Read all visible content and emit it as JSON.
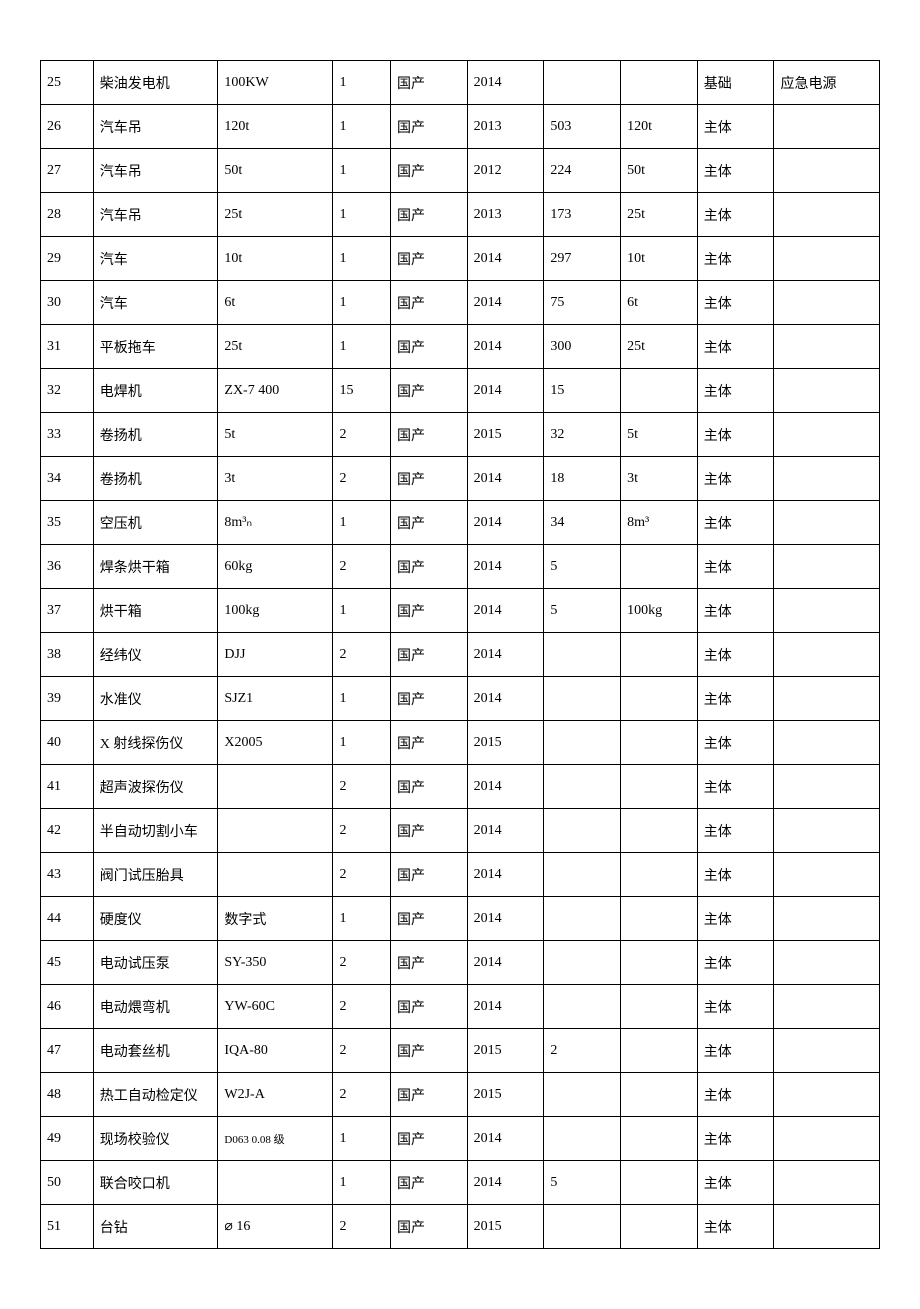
{
  "table": {
    "column_widths_pct": [
      5.5,
      13,
      12,
      6,
      8,
      8,
      8,
      8,
      8,
      11
    ],
    "border_color": "#000000",
    "background_color": "#ffffff",
    "text_color": "#000000",
    "font_size_pt": 10,
    "small_font_size_pt": 8,
    "rows": [
      {
        "cells": [
          "25",
          "柴油发电机",
          "100KW",
          "1",
          "国产",
          "2014",
          "",
          "",
          "基础",
          "应急电源"
        ],
        "small_idx": []
      },
      {
        "cells": [
          "26",
          "汽车吊",
          "120t",
          "1",
          "国产",
          "2013",
          "503",
          "120t",
          "主体",
          ""
        ],
        "small_idx": []
      },
      {
        "cells": [
          "27",
          "汽车吊",
          "50t",
          "1",
          "国产",
          "2012",
          "224",
          "50t",
          "主体",
          ""
        ],
        "small_idx": []
      },
      {
        "cells": [
          "28",
          "汽车吊",
          "25t",
          "1",
          "国产",
          "2013",
          "173",
          "25t",
          "主体",
          ""
        ],
        "small_idx": []
      },
      {
        "cells": [
          "29",
          "汽车",
          "10t",
          "1",
          "国产",
          "2014",
          "297",
          "10t",
          "主体",
          ""
        ],
        "small_idx": []
      },
      {
        "cells": [
          "30",
          "汽车",
          "6t",
          "1",
          "国产",
          "2014",
          "75",
          "6t",
          "主体",
          ""
        ],
        "small_idx": []
      },
      {
        "cells": [
          "31",
          "平板拖车",
          "25t",
          "1",
          "国产",
          "2014",
          "300",
          "25t",
          "主体",
          ""
        ],
        "small_idx": []
      },
      {
        "cells": [
          "32",
          "电焊机",
          "ZX-7 400",
          "15",
          "国产",
          "2014",
          "15",
          "",
          "主体",
          ""
        ],
        "small_idx": []
      },
      {
        "cells": [
          "33",
          "卷扬机",
          "5t",
          "2",
          "国产",
          "2015",
          "32",
          "5t",
          "主体",
          ""
        ],
        "small_idx": []
      },
      {
        "cells": [
          "34",
          "卷扬机",
          "3t",
          "2",
          "国产",
          "2014",
          "18",
          "3t",
          "主体",
          ""
        ],
        "small_idx": []
      },
      {
        "cells": [
          "35",
          "空压机",
          "8m³ₙ",
          "1",
          "国产",
          "2014",
          "34",
          "8m³",
          "主体",
          ""
        ],
        "small_idx": []
      },
      {
        "cells": [
          "36",
          "焊条烘干箱",
          "60kg",
          "2",
          "国产",
          "2014",
          "5",
          "",
          "主体",
          ""
        ],
        "small_idx": []
      },
      {
        "cells": [
          "37",
          "烘干箱",
          "100kg",
          "1",
          "国产",
          "2014",
          "5",
          "100kg",
          "主体",
          ""
        ],
        "small_idx": []
      },
      {
        "cells": [
          "38",
          "经纬仪",
          "DJJ",
          "2",
          "国产",
          "2014",
          "",
          "",
          "主体",
          ""
        ],
        "small_idx": []
      },
      {
        "cells": [
          "39",
          "水准仪",
          "SJZ1",
          "1",
          "国产",
          "2014",
          "",
          "",
          "主体",
          ""
        ],
        "small_idx": []
      },
      {
        "cells": [
          "40",
          "X 射线探伤仪",
          "X2005",
          "1",
          "国产",
          "2015",
          "",
          "",
          "主体",
          ""
        ],
        "small_idx": []
      },
      {
        "cells": [
          "41",
          "超声波探伤仪",
          "",
          "2",
          "国产",
          "2014",
          "",
          "",
          "主体",
          ""
        ],
        "small_idx": []
      },
      {
        "cells": [
          "42",
          "半自动切割小车",
          "",
          "2",
          "国产",
          "2014",
          "",
          "",
          "主体",
          ""
        ],
        "small_idx": []
      },
      {
        "cells": [
          "43",
          "阀门试压胎具",
          "",
          "2",
          "国产",
          "2014",
          "",
          "",
          "主体",
          ""
        ],
        "small_idx": []
      },
      {
        "cells": [
          "44",
          "硬度仪",
          "数字式",
          "1",
          "国产",
          "2014",
          "",
          "",
          "主体",
          ""
        ],
        "small_idx": []
      },
      {
        "cells": [
          "45",
          "电动试压泵",
          "SY-350",
          "2",
          "国产",
          "2014",
          "",
          "",
          "主体",
          ""
        ],
        "small_idx": []
      },
      {
        "cells": [
          "46",
          "电动煨弯机",
          "YW-60C",
          "2",
          "国产",
          "2014",
          "",
          "",
          "主体",
          ""
        ],
        "small_idx": []
      },
      {
        "cells": [
          "47",
          "电动套丝机",
          "IQA-80",
          "2",
          "国产",
          "2015",
          "2",
          "",
          "主体",
          ""
        ],
        "small_idx": []
      },
      {
        "cells": [
          "48",
          "热工自动检定仪",
          "W2J-A",
          "2",
          "国产",
          "2015",
          "",
          "",
          "主体",
          ""
        ],
        "small_idx": []
      },
      {
        "cells": [
          "49",
          "现场校验仪",
          "D063 0.08 级",
          "1",
          "国产",
          "2014",
          "",
          "",
          "主体",
          ""
        ],
        "small_idx": [
          2
        ]
      },
      {
        "cells": [
          "50",
          "联合咬口机",
          "",
          "1",
          "国产",
          "2014",
          "5",
          "",
          "主体",
          ""
        ],
        "small_idx": []
      },
      {
        "cells": [
          "51",
          "台钻",
          "⌀ 16",
          "2",
          "国产",
          "2015",
          "",
          "",
          "主体",
          ""
        ],
        "small_idx": []
      }
    ]
  }
}
